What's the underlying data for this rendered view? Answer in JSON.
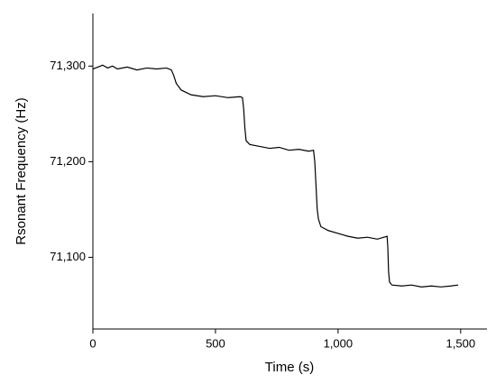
{
  "chart_data": {
    "type": "line",
    "xlabel": "Time (s)",
    "ylabel": "Rsonant Frequency (Hz)",
    "x": [
      0,
      20,
      40,
      60,
      80,
      100,
      140,
      180,
      220,
      260,
      300,
      320,
      330,
      340,
      360,
      400,
      450,
      500,
      550,
      600,
      610,
      615,
      620,
      625,
      640,
      680,
      720,
      760,
      800,
      840,
      880,
      900,
      905,
      910,
      915,
      920,
      930,
      960,
      1000,
      1040,
      1080,
      1120,
      1160,
      1200,
      1203,
      1206,
      1210,
      1220,
      1260,
      1300,
      1340,
      1380,
      1420,
      1460,
      1490
    ],
    "series": [
      {
        "name": "Resonant frequency",
        "color": "#000000",
        "values": [
          71297,
          71299,
          71301,
          71298,
          71300,
          71297,
          71299,
          71296,
          71298,
          71297,
          71298,
          71296,
          71290,
          71282,
          71275,
          71270,
          71268,
          71269,
          71267,
          71268,
          71267,
          71255,
          71235,
          71222,
          71218,
          71216,
          71214,
          71215,
          71212,
          71213,
          71211,
          71212,
          71200,
          71175,
          71150,
          71140,
          71132,
          71128,
          71125,
          71122,
          71120,
          71121,
          71119,
          71122,
          71110,
          71085,
          71074,
          71071,
          71070,
          71071,
          71069,
          71070,
          71069,
          71070,
          71071
        ]
      }
    ],
    "xlim": [
      0,
      1600
    ],
    "ylim": [
      71025,
      71355
    ],
    "xticks": [
      0,
      500,
      {
        "value": 1000,
        "label": "1,000"
      },
      {
        "value": 1500,
        "label": "1,500"
      }
    ],
    "yticks": [
      {
        "value": 71100,
        "label": "71,100"
      },
      {
        "value": 71200,
        "label": "71,200"
      },
      {
        "value": 71300,
        "label": "71,300"
      }
    ]
  }
}
